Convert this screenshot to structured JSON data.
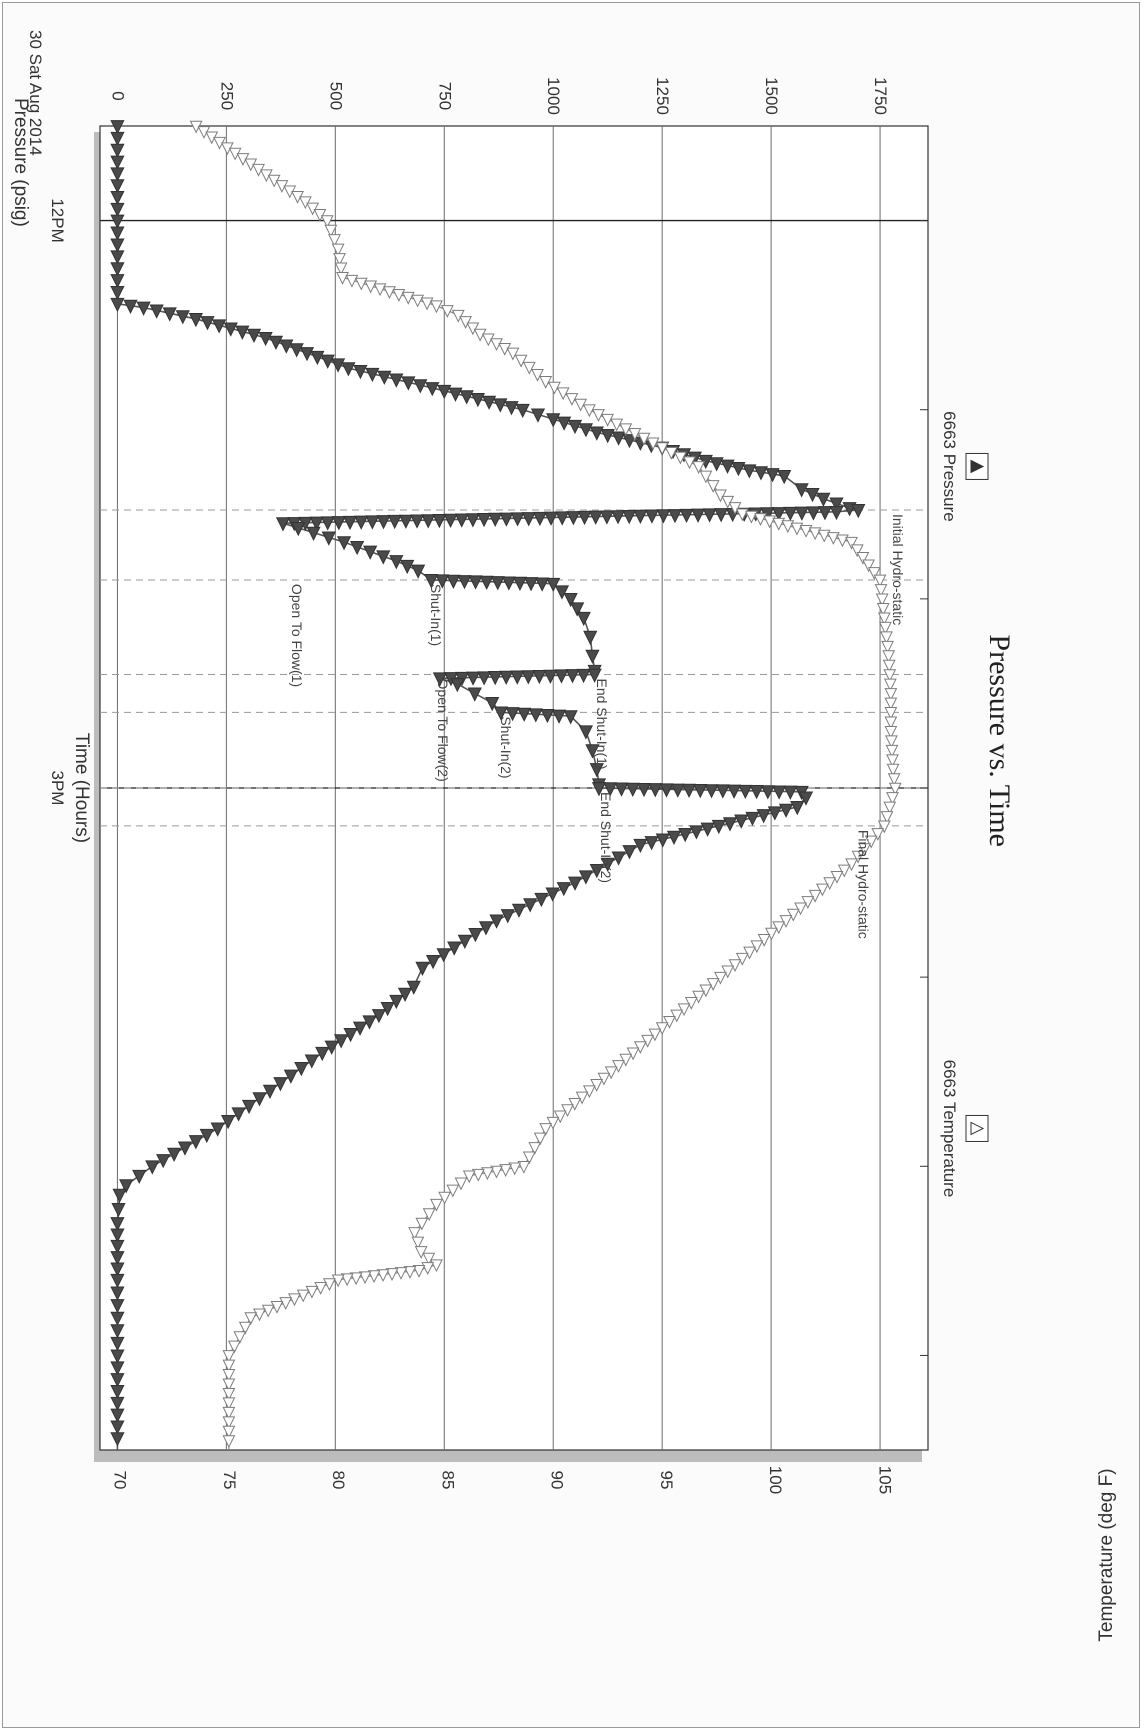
{
  "chart_data": {
    "type": "line",
    "title": "Pressure vs. Time",
    "xlabel": "Time (Hours)",
    "ylabel": "Pressure (psig)",
    "y2label": "Temperature (deg F)",
    "date_label": "30 Sat Aug 2014",
    "x_tick_labels": [
      "12PM",
      "3PM"
    ],
    "x_range_hours": [
      11.5,
      18.5
    ],
    "y_ticks": [
      0,
      250,
      500,
      750,
      1000,
      1250,
      1500,
      1750
    ],
    "y_tick_labels": [
      "0",
      "250",
      "500",
      "750",
      "1000",
      "1250",
      "1500",
      "1750"
    ],
    "ylim": [
      -40,
      1860
    ],
    "y2_ticks": [
      70,
      75,
      80,
      85,
      90,
      95,
      100,
      105
    ],
    "y2_tick_labels": [
      "70",
      "75",
      "80",
      "85",
      "90",
      "95",
      "100",
      "105"
    ],
    "y2lim": [
      69.1,
      107
    ],
    "grid": true,
    "legend": [
      {
        "label": "6663 Pressure",
        "marker": "filled-triangle",
        "placement": "top-left"
      },
      {
        "label": "6663 Temperature",
        "marker": "open-triangle",
        "placement": "top-right"
      }
    ],
    "event_markers": [
      {
        "time": 13.53,
        "label": "Initial Hydro-static",
        "label_pressure": 1780
      },
      {
        "time": 13.9,
        "label": "Open To Flow(1)",
        "label_pressure": 400
      },
      {
        "time": 13.9,
        "label": "Shut-In(1)",
        "label_pressure": 720
      },
      {
        "time": 14.4,
        "label": "End Shut-In(1)",
        "label_pressure": 1100
      },
      {
        "time": 14.4,
        "label": "Open To Flow(2)",
        "label_pressure": 735
      },
      {
        "time": 14.6,
        "label": "Shut-In(2)",
        "label_pressure": 880
      },
      {
        "time": 15.0,
        "label": "End Shut-In(2)",
        "label_pressure": 1110
      },
      {
        "time": 15.2,
        "label": "Final Hydro-static",
        "label_pressure": 1700
      }
    ],
    "series": [
      {
        "name": "6663 Pressure",
        "marker": "filled",
        "color": "#555555",
        "x": [
          11.5,
          12.0,
          12.44,
          12.46,
          12.52,
          12.62,
          12.78,
          12.9,
          13.0,
          13.05,
          13.12,
          13.2,
          13.27,
          13.32,
          13.35,
          13.42,
          13.47,
          13.52,
          13.53,
          13.54,
          13.56,
          13.6,
          13.65,
          13.7,
          13.75,
          13.8,
          13.85,
          13.9,
          13.92,
          14.0,
          14.1,
          14.2,
          14.3,
          14.38,
          14.4,
          14.42,
          14.45,
          14.5,
          14.55,
          14.6,
          14.62,
          14.7,
          14.8,
          14.9,
          14.98,
          15.0,
          15.02,
          15.05,
          15.1,
          15.2,
          15.3,
          15.5,
          15.7,
          15.95,
          16.05,
          16.2,
          16.4,
          16.6,
          16.8,
          17.0,
          17.1,
          17.15,
          17.3,
          17.6,
          18.0,
          18.5
        ],
        "y": [
          0,
          0,
          0,
          60,
          180,
          340,
          530,
          750,
          930,
          1000,
          1100,
          1250,
          1350,
          1450,
          1530,
          1570,
          1620,
          1680,
          1700,
          1650,
          1200,
          380,
          450,
          520,
          580,
          640,
          690,
          720,
          1000,
          1040,
          1070,
          1085,
          1090,
          1095,
          1095,
          740,
          780,
          820,
          860,
          880,
          1040,
          1075,
          1090,
          1100,
          1105,
          1105,
          1570,
          1580,
          1560,
          1380,
          1200,
          1050,
          870,
          700,
          680,
          600,
          470,
          350,
          230,
          80,
          20,
          5,
          0,
          0,
          0,
          0
        ]
      },
      {
        "name": "6663 Temperature",
        "marker": "open",
        "color": "#888888",
        "x": [
          11.5,
          11.9,
          12.0,
          12.15,
          12.3,
          12.45,
          12.5,
          12.6,
          12.7,
          12.85,
          13.0,
          13.15,
          13.3,
          13.45,
          13.55,
          13.7,
          13.9,
          14.1,
          14.3,
          14.5,
          14.7,
          14.9,
          15.0,
          15.2,
          15.4,
          15.6,
          15.8,
          16.0,
          16.2,
          16.4,
          16.6,
          16.8,
          17.0,
          17.05,
          17.2,
          17.35,
          17.45,
          17.52,
          17.55,
          17.6,
          17.8,
          18.0,
          18.5
        ],
        "y": [
          73.5,
          78.5,
          79.5,
          80.0,
          80.2,
          84.5,
          85.5,
          86.5,
          88.0,
          89.5,
          91.5,
          94.0,
          96.5,
          97.5,
          98.5,
          103.5,
          104.8,
          105.0,
          105.2,
          105.3,
          105.3,
          105.4,
          105.5,
          105.0,
          103.5,
          101.5,
          99.5,
          97.5,
          95.5,
          93.5,
          91.5,
          89.5,
          88.5,
          86.0,
          84.5,
          83.5,
          83.8,
          84.5,
          83.7,
          80.0,
          76.0,
          75.0,
          75.0
        ]
      }
    ]
  }
}
